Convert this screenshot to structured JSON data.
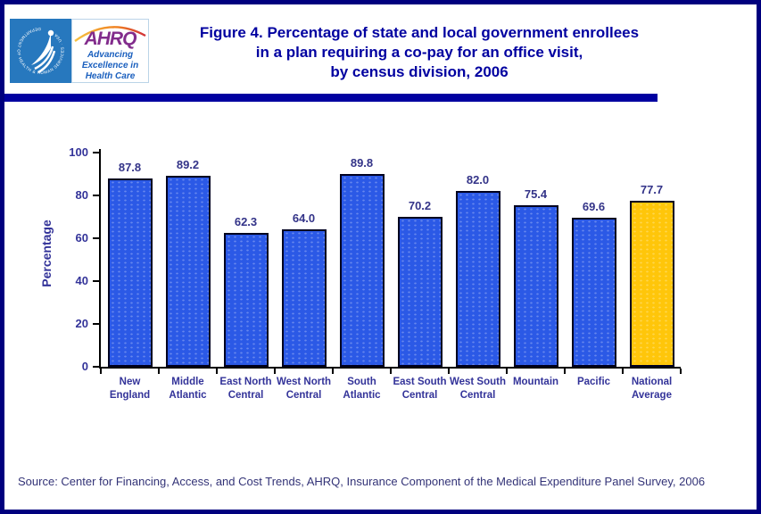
{
  "header": {
    "logo": {
      "hhs_ring_text": "DEPARTMENT OF HEALTH & HUMAN SERVICES · USA",
      "ahrq_acronym": "AHRQ",
      "ahrq_tagline_lines": [
        "Advancing",
        "Excellence in",
        "Health Care"
      ]
    },
    "title_lines": [
      "Figure 4. Percentage of state and local government enrollees",
      "in a plan requiring a co-pay for an office visit,",
      "by census division, 2006"
    ],
    "title_color": "#0000A0",
    "divider_color": "#0000A0"
  },
  "chart_data": {
    "type": "bar",
    "title": "Percentage of state and local government enrollees in a plan requiring a co-pay for an office visit, by census division, 2006",
    "xlabel": "",
    "ylabel": "Percentage",
    "ylim": [
      0,
      100
    ],
    "yticks": [
      0,
      20,
      40,
      60,
      80,
      100
    ],
    "grid": false,
    "legend": false,
    "categories": [
      "New England",
      "Middle Atlantic",
      "East North Central",
      "West North Central",
      "South Atlantic",
      "East South Central",
      "West South Central",
      "Mountain",
      "Pacific",
      "National Average"
    ],
    "category_label_lines": [
      [
        "New",
        "England"
      ],
      [
        "Middle",
        "Atlantic"
      ],
      [
        "East North",
        "Central"
      ],
      [
        "West North",
        "Central"
      ],
      [
        "South",
        "Atlantic"
      ],
      [
        "East South",
        "Central"
      ],
      [
        "West South",
        "Central"
      ],
      [
        "Mountain"
      ],
      [
        "Pacific"
      ],
      [
        "National",
        "Average"
      ]
    ],
    "values": [
      87.8,
      89.2,
      62.3,
      64.0,
      89.8,
      70.2,
      82.0,
      75.4,
      69.6,
      77.7
    ],
    "value_labels": [
      "87.8",
      "89.2",
      "62.3",
      "64.0",
      "89.8",
      "70.2",
      "82.0",
      "75.4",
      "69.6",
      "77.7"
    ],
    "bar_color": "#2B59E6",
    "highlight_color": "#FFC60A",
    "highlight_index": 9,
    "bar_border_color": "#00001F",
    "axis_color": "#000000",
    "label_color": "#333399"
  },
  "footer": {
    "source": "Source: Center for Financing, Access, and Cost Trends, AHRQ, Insurance Component of the Medical Expenditure Panel Survey, 2006"
  }
}
